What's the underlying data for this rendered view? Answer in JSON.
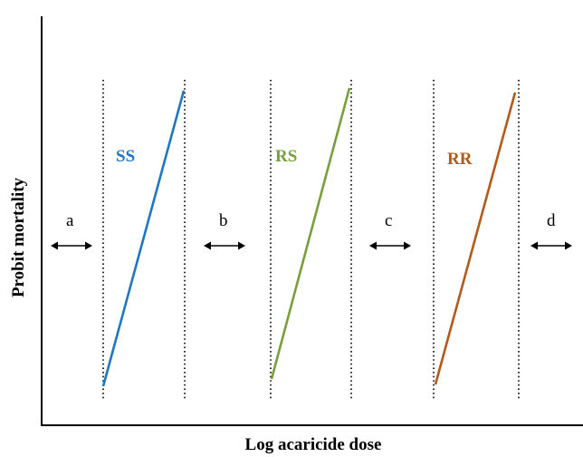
{
  "chart_data": {
    "type": "line",
    "title": "",
    "xlabel": "Log acaricide dose",
    "ylabel": "Probit mortality",
    "grid": false,
    "series": [
      {
        "name": "SS",
        "color": "#1f77c4"
      },
      {
        "name": "RS",
        "color": "#77a03c"
      },
      {
        "name": "RR",
        "color": "#b35a1a"
      }
    ],
    "zones": [
      "a",
      "b",
      "c",
      "d"
    ]
  }
}
